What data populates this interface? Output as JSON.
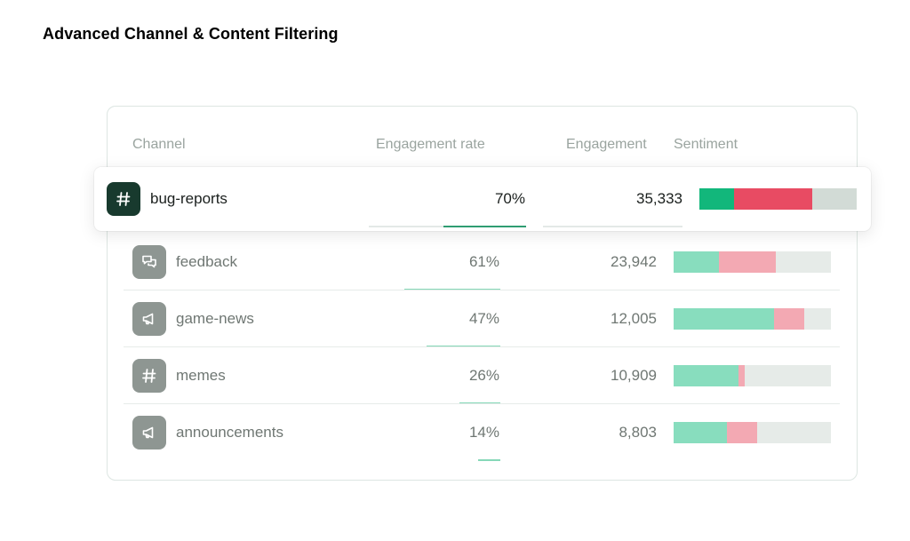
{
  "page": {
    "title": "Advanced Channel & Content Filtering"
  },
  "table": {
    "columns": {
      "channel": "Channel",
      "engagement_rate": "Engagement rate",
      "engagement": "Engagement",
      "sentiment": "Sentiment"
    },
    "rows": [
      {
        "name": "bug-reports",
        "icon": "hash-icon",
        "engagement_rate": "70%",
        "rate_value": 0.7,
        "engagement": "35,333",
        "highlighted": true,
        "sentiment": {
          "positive": 0.22,
          "negative": 0.5,
          "neutral": 0.28
        }
      },
      {
        "name": "feedback",
        "icon": "chat-bubbles-icon",
        "engagement_rate": "61%",
        "rate_value": 0.61,
        "engagement": "23,942",
        "highlighted": false,
        "sentiment": {
          "positive": 0.29,
          "negative": 0.36,
          "neutral": 0.35
        }
      },
      {
        "name": "game-news",
        "icon": "megaphone-icon",
        "engagement_rate": "47%",
        "rate_value": 0.47,
        "engagement": "12,005",
        "highlighted": false,
        "sentiment": {
          "positive": 0.64,
          "negative": 0.19,
          "neutral": 0.17
        }
      },
      {
        "name": "memes",
        "icon": "hash-icon",
        "engagement_rate": "26%",
        "rate_value": 0.26,
        "engagement": "10,909",
        "highlighted": false,
        "sentiment": {
          "positive": 0.41,
          "negative": 0.04,
          "neutral": 0.55
        }
      },
      {
        "name": "announcements",
        "icon": "megaphone-icon",
        "engagement_rate": "14%",
        "rate_value": 0.14,
        "engagement": "8,803",
        "highlighted": false,
        "sentiment": {
          "positive": 0.34,
          "negative": 0.19,
          "neutral": 0.47
        }
      }
    ]
  },
  "colors": {
    "positive_dark": "#12b77b",
    "negative_dark": "#e84b63",
    "neutral_dark": "#d2dbd6",
    "positive": "#88ddbe",
    "negative": "#f3a9b3",
    "neutral": "#e6ebe8",
    "icon_dark_bg": "#183a2e",
    "icon_bg": "#8e9692"
  }
}
